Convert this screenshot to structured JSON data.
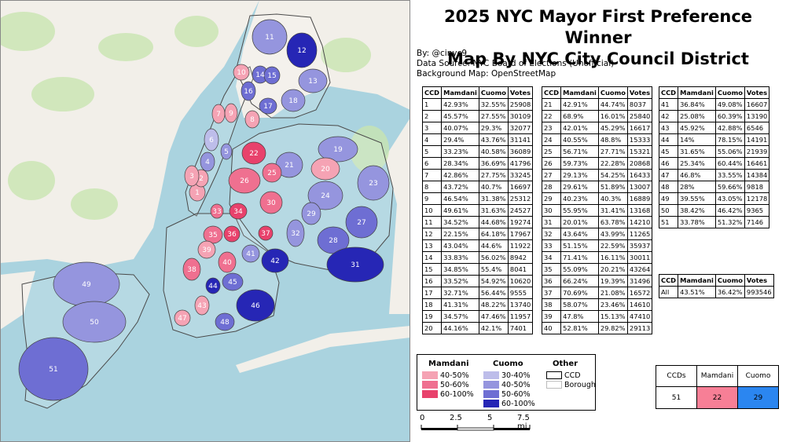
{
  "title_lines": [
    "2025 NYC Mayor First Preference Winner",
    "Map By NYC City Council District"
  ],
  "meta": {
    "by": "By: @cinyc9",
    "source": "Data Source: NYC Board of Elections (Unofficial)",
    "background": "Background Map: OpenStreetMap"
  },
  "table_headers": [
    "CCD",
    "Mamdani",
    "Cuomo",
    "Votes"
  ],
  "districts": [
    [
      "1",
      "42.93%",
      "32.55%",
      "25908"
    ],
    [
      "2",
      "45.57%",
      "27.55%",
      "30109"
    ],
    [
      "3",
      "40.07%",
      "29.3%",
      "32077"
    ],
    [
      "4",
      "29.4%",
      "43.76%",
      "31141"
    ],
    [
      "5",
      "33.23%",
      "40.58%",
      "36089"
    ],
    [
      "6",
      "28.34%",
      "36.69%",
      "41796"
    ],
    [
      "7",
      "42.86%",
      "27.75%",
      "33245"
    ],
    [
      "8",
      "43.72%",
      "40.7%",
      "16697"
    ],
    [
      "9",
      "46.54%",
      "31.38%",
      "25312"
    ],
    [
      "10",
      "49.61%",
      "31.63%",
      "24527"
    ],
    [
      "11",
      "34.52%",
      "44.68%",
      "19274"
    ],
    [
      "12",
      "22.15%",
      "64.18%",
      "17967"
    ],
    [
      "13",
      "43.04%",
      "44.6%",
      "11922"
    ],
    [
      "14",
      "33.83%",
      "56.02%",
      "8942"
    ],
    [
      "15",
      "34.85%",
      "55.4%",
      "8041"
    ],
    [
      "16",
      "33.52%",
      "54.92%",
      "10620"
    ],
    [
      "17",
      "32.71%",
      "56.44%",
      "9555"
    ],
    [
      "18",
      "41.31%",
      "48.22%",
      "13740"
    ],
    [
      "19",
      "34.57%",
      "47.46%",
      "11957"
    ],
    [
      "20",
      "44.16%",
      "42.1%",
      "7401"
    ],
    [
      "21",
      "42.91%",
      "44.74%",
      "8037"
    ],
    [
      "22",
      "68.9%",
      "16.01%",
      "25840"
    ],
    [
      "23",
      "42.01%",
      "45.29%",
      "16617"
    ],
    [
      "24",
      "40.55%",
      "48.8%",
      "15333"
    ],
    [
      "25",
      "56.71%",
      "27.71%",
      "15321"
    ],
    [
      "26",
      "59.73%",
      "22.28%",
      "20868"
    ],
    [
      "27",
      "29.13%",
      "54.25%",
      "16433"
    ],
    [
      "28",
      "29.61%",
      "51.89%",
      "13007"
    ],
    [
      "29",
      "40.23%",
      "40.3%",
      "16889"
    ],
    [
      "30",
      "55.95%",
      "31.41%",
      "13168"
    ],
    [
      "31",
      "20.01%",
      "63.78%",
      "14210"
    ],
    [
      "32",
      "43.64%",
      "43.99%",
      "11265"
    ],
    [
      "33",
      "51.15%",
      "22.59%",
      "35937"
    ],
    [
      "34",
      "71.41%",
      "16.11%",
      "30011"
    ],
    [
      "35",
      "55.09%",
      "20.21%",
      "43264"
    ],
    [
      "36",
      "66.24%",
      "19.39%",
      "31496"
    ],
    [
      "37",
      "70.69%",
      "21.08%",
      "16572"
    ],
    [
      "38",
      "58.07%",
      "23.46%",
      "14610"
    ],
    [
      "39",
      "47.8%",
      "15.13%",
      "47410"
    ],
    [
      "40",
      "52.81%",
      "29.82%",
      "29113"
    ],
    [
      "41",
      "36.84%",
      "49.08%",
      "16607"
    ],
    [
      "42",
      "25.08%",
      "60.39%",
      "13190"
    ],
    [
      "43",
      "45.92%",
      "42.88%",
      "6546"
    ],
    [
      "44",
      "14%",
      "78.15%",
      "14191"
    ],
    [
      "45",
      "31.65%",
      "55.06%",
      "21939"
    ],
    [
      "46",
      "25.34%",
      "60.44%",
      "16461"
    ],
    [
      "47",
      "46.8%",
      "33.55%",
      "14384"
    ],
    [
      "48",
      "28%",
      "59.66%",
      "9818"
    ],
    [
      "49",
      "39.55%",
      "43.05%",
      "12178"
    ],
    [
      "50",
      "38.42%",
      "46.42%",
      "9365"
    ],
    [
      "51",
      "33.78%",
      "51.32%",
      "7146"
    ]
  ],
  "citywide": {
    "ccd": "All",
    "mamdani": "43.51%",
    "cuomo": "36.42%",
    "votes": "993546"
  },
  "legend": {
    "mamdani_title": "Mamdani",
    "cuomo_title": "Cuomo",
    "other_title": "Other",
    "mamdani_bins": [
      {
        "label": "40-50%",
        "color": "#f5a3b4"
      },
      {
        "label": "50-60%",
        "color": "#ef7090"
      },
      {
        "label": "60-100%",
        "color": "#e8426c"
      }
    ],
    "cuomo_bins": [
      {
        "label": "30-40%",
        "color": "#bdbdea"
      },
      {
        "label": "40-50%",
        "color": "#9595de"
      },
      {
        "label": "50-60%",
        "color": "#6e6ed3"
      },
      {
        "label": "60-100%",
        "color": "#2626b5"
      }
    ],
    "other_items": [
      {
        "label": "CCD"
      },
      {
        "label": "Borough"
      }
    ]
  },
  "scale": {
    "labels": [
      "0",
      "2.5",
      "5",
      "7.5 mi"
    ]
  },
  "summary": {
    "headers": [
      "CCDs",
      "Mamdani",
      "Cuomo"
    ],
    "values": [
      "51",
      "22",
      "29"
    ],
    "mamdani_color": "#f77f96",
    "cuomo_color": "#2b86f0"
  },
  "map_colors": {
    "land": "#f2efe9",
    "water": "#aad3df",
    "park": "#c8e5b0"
  }
}
